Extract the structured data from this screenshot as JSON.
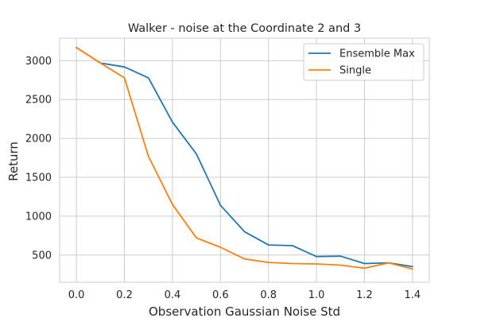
{
  "chart_data": {
    "type": "line",
    "title": "Walker - noise at the Coordinate 2 and 3",
    "xlabel": "Observation Gaussian Noise Std",
    "ylabel": "Return",
    "xlim": [
      -0.07,
      1.47
    ],
    "ylim": [
      150,
      3290
    ],
    "xticks": [
      0.0,
      0.2,
      0.4,
      0.6,
      0.8,
      1.0,
      1.2,
      1.4
    ],
    "xtick_labels": [
      "0.0",
      "0.2",
      "0.4",
      "0.6",
      "0.8",
      "1.0",
      "1.2",
      "1.4"
    ],
    "yticks": [
      500,
      1000,
      1500,
      2000,
      2500,
      3000
    ],
    "ytick_labels": [
      "500",
      "1000",
      "1500",
      "2000",
      "2500",
      "3000"
    ],
    "grid": true,
    "legend_position": "top-right",
    "x": [
      0.0,
      0.1,
      0.2,
      0.3,
      0.4,
      0.5,
      0.6,
      0.7,
      0.8,
      0.9,
      1.0,
      1.1,
      1.2,
      1.3,
      1.4
    ],
    "series": [
      {
        "name": "Ensemble Max",
        "color": "#1f77b4",
        "values": [
          3170,
          2970,
          2920,
          2780,
          2210,
          1800,
          1140,
          800,
          630,
          620,
          480,
          485,
          390,
          400,
          350
        ]
      },
      {
        "name": "Single",
        "color": "#ff7f0e",
        "values": [
          3170,
          2970,
          2780,
          1770,
          1150,
          720,
          600,
          450,
          405,
          390,
          385,
          370,
          330,
          400,
          320
        ]
      }
    ]
  }
}
